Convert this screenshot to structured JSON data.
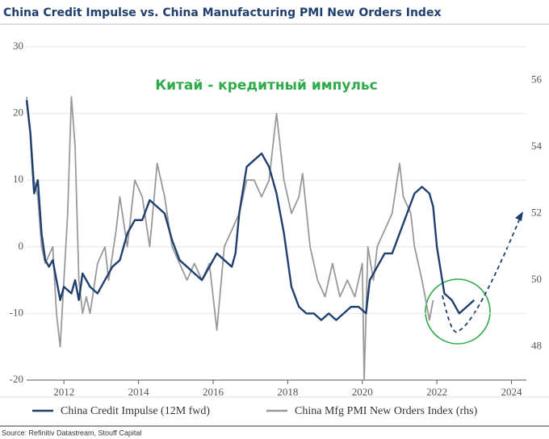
{
  "chart_data": {
    "type": "line",
    "title": "China Credit Impulse vs. China Manufacturing PMI New Orders Index",
    "annotation": "Китай - кредитный импульс",
    "source": "Source: Refinitiv Datastream, Stouff Capital",
    "xlim": [
      2011,
      2024.4
    ],
    "xticks": [
      2012,
      2014,
      2016,
      2018,
      2020,
      2022,
      2024
    ],
    "ylim": [
      -20,
      30
    ],
    "yticks": [
      -20,
      -10,
      0,
      10,
      20,
      30
    ],
    "y2lim": [
      47,
      57
    ],
    "y2ticks": [
      48,
      50,
      52,
      54,
      56
    ],
    "grid": true,
    "series": [
      {
        "name": "China Credit Impulse (12M fwd)",
        "color": "#1f3f6e",
        "x": [
          2011.0,
          2011.1,
          2011.2,
          2011.3,
          2011.4,
          2011.5,
          2011.6,
          2011.7,
          2011.8,
          2011.9,
          2012.0,
          2012.2,
          2012.3,
          2012.4,
          2012.5,
          2012.7,
          2012.9,
          2013.1,
          2013.3,
          2013.5,
          2013.7,
          2013.9,
          2014.1,
          2014.3,
          2014.5,
          2014.7,
          2014.9,
          2015.1,
          2015.3,
          2015.5,
          2015.7,
          2015.9,
          2016.1,
          2016.3,
          2016.5,
          2016.6,
          2016.7,
          2016.9,
          2017.1,
          2017.3,
          2017.5,
          2017.7,
          2017.9,
          2018.1,
          2018.3,
          2018.5,
          2018.7,
          2018.9,
          2019.1,
          2019.3,
          2019.5,
          2019.7,
          2019.9,
          2020.1,
          2020.2,
          2020.4,
          2020.6,
          2020.8,
          2021.0,
          2021.2,
          2021.4,
          2021.6,
          2021.8,
          2021.9,
          2022.0,
          2022.2,
          2022.4,
          2022.6,
          2022.8,
          2023.0
        ],
        "values": [
          22,
          17,
          8,
          10,
          2,
          -2,
          -3,
          -2,
          -5,
          -8,
          -6,
          -7,
          -5,
          -8,
          -4,
          -6,
          -7,
          -5,
          -3,
          -2,
          2,
          4,
          4,
          7,
          6,
          5,
          1,
          -2,
          -3,
          -4,
          -5,
          -3,
          -1,
          -2,
          -3,
          -1,
          5,
          12,
          13,
          14,
          12,
          8,
          2,
          -6,
          -9,
          -10,
          -10,
          -11,
          -10,
          -11,
          -10,
          -9,
          -9,
          -10,
          -5,
          -3,
          -1,
          -1,
          2,
          5,
          8,
          9,
          8,
          6,
          0,
          -7,
          -8,
          -10,
          -9,
          -8
        ]
      },
      {
        "name": "China Mfg PMI New Orders Index (rhs)",
        "color": "#999999",
        "axis": "y2",
        "x": [
          2011.0,
          2011.1,
          2011.2,
          2011.3,
          2011.4,
          2011.5,
          2011.7,
          2011.8,
          2011.9,
          2012.0,
          2012.1,
          2012.2,
          2012.3,
          2012.4,
          2012.5,
          2012.6,
          2012.7,
          2012.9,
          2013.1,
          2013.2,
          2013.4,
          2013.5,
          2013.7,
          2013.9,
          2014.1,
          2014.3,
          2014.5,
          2014.7,
          2014.9,
          2015.1,
          2015.3,
          2015.5,
          2015.7,
          2015.9,
          2016.1,
          2016.3,
          2016.5,
          2016.7,
          2016.9,
          2017.1,
          2017.3,
          2017.5,
          2017.7,
          2017.9,
          2018.1,
          2018.3,
          2018.4,
          2018.6,
          2018.8,
          2019.0,
          2019.2,
          2019.4,
          2019.6,
          2019.8,
          2020.0,
          2020.05,
          2020.15,
          2020.3,
          2020.4,
          2020.6,
          2020.8,
          2021.0,
          2021.1,
          2021.3,
          2021.4,
          2021.5,
          2021.6,
          2021.8,
          2021.9
        ],
        "values": [
          55.5,
          54.5,
          53,
          52.5,
          51,
          50.5,
          51,
          49,
          48,
          50,
          52,
          55.5,
          54,
          50,
          49,
          49.5,
          49,
          50.5,
          51,
          50,
          51.5,
          52.5,
          51,
          53,
          52.5,
          51,
          53.5,
          52.5,
          51,
          50.5,
          50,
          50.5,
          50,
          50.5,
          48.5,
          51,
          51.5,
          52,
          53,
          53,
          52.5,
          53,
          55,
          53,
          52,
          52.5,
          53.2,
          51,
          50,
          49.5,
          50.5,
          49.5,
          50,
          49.5,
          50.5,
          47,
          51,
          50,
          51,
          51.5,
          52,
          53.5,
          52.5,
          52,
          51,
          50.5,
          50,
          48.8,
          49.4
        ]
      }
    ]
  }
}
